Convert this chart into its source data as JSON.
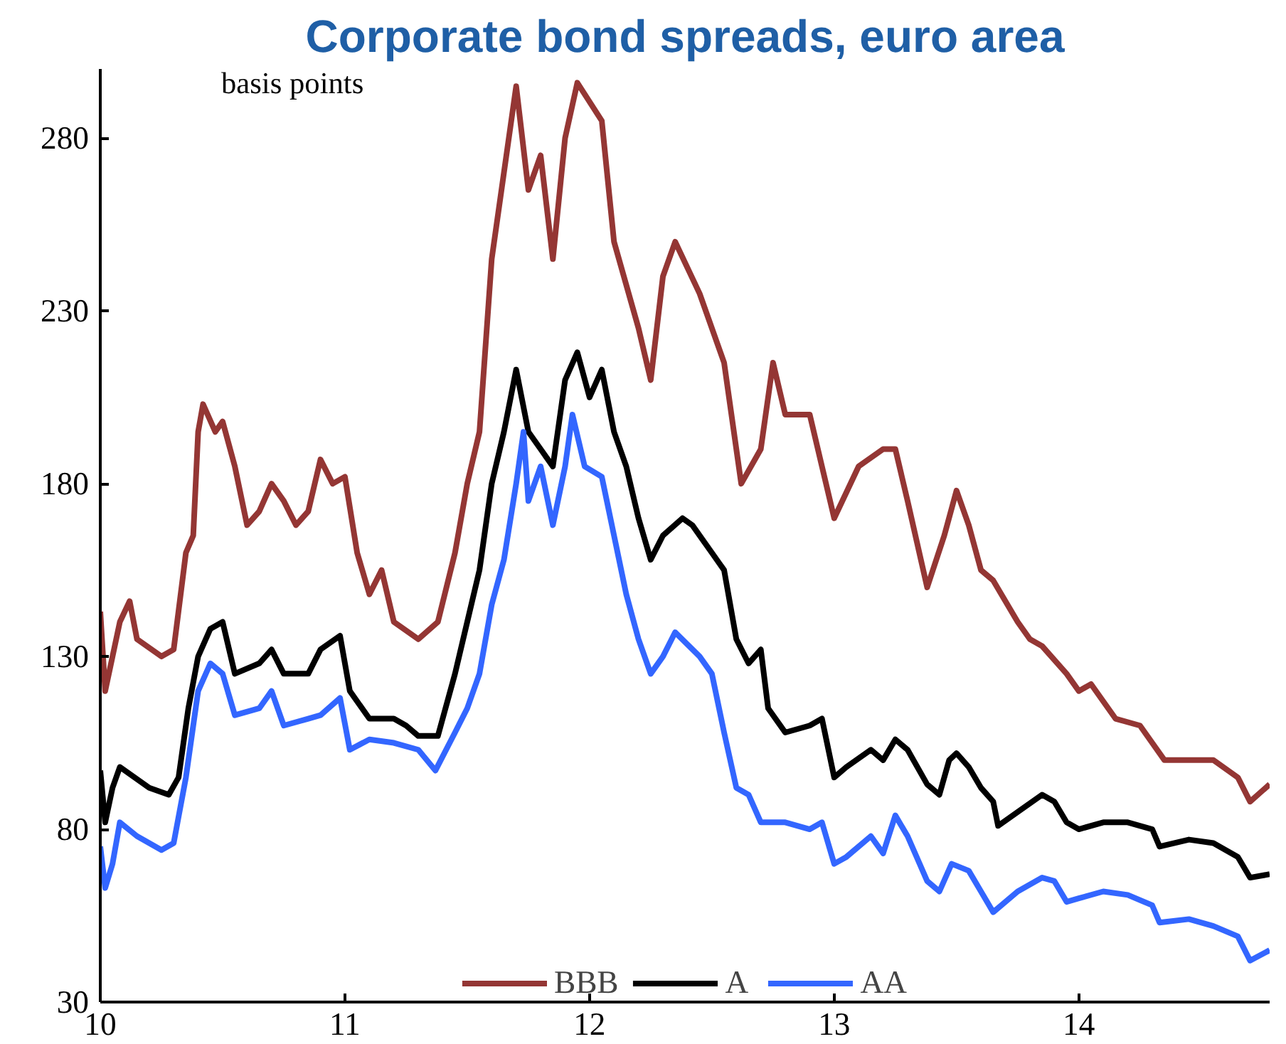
{
  "chart_data": {
    "type": "line",
    "title": "Corporate bond spreads, euro area",
    "ylabel": "basis points",
    "xlim": [
      10,
      14.78
    ],
    "xticks": [
      10,
      11,
      12,
      13,
      14
    ],
    "ylim": [
      30,
      300
    ],
    "yticks": [
      30,
      80,
      130,
      180,
      230,
      280
    ],
    "grid": false,
    "legend": "bottom",
    "marker": "none",
    "line_style": "solid",
    "series": [
      {
        "name": "BBB",
        "color": "#943634",
        "x": [
          10.0,
          10.02,
          10.05,
          10.08,
          10.12,
          10.15,
          10.25,
          10.3,
          10.35,
          10.38,
          10.4,
          10.42,
          10.47,
          10.5,
          10.55,
          10.6,
          10.65,
          10.7,
          10.75,
          10.8,
          10.85,
          10.9,
          10.95,
          11.0,
          11.05,
          11.1,
          11.15,
          11.2,
          11.3,
          11.38,
          11.45,
          11.5,
          11.55,
          11.6,
          11.65,
          11.7,
          11.75,
          11.8,
          11.85,
          11.9,
          11.95,
          12.05,
          12.1,
          12.2,
          12.25,
          12.3,
          12.35,
          12.45,
          12.55,
          12.62,
          12.7,
          12.75,
          12.8,
          12.9,
          12.95,
          13.0,
          13.1,
          13.2,
          13.25,
          13.3,
          13.38,
          13.45,
          13.5,
          13.55,
          13.6,
          13.65,
          13.75,
          13.8,
          13.85,
          13.95,
          14.0,
          14.05,
          14.15,
          14.25,
          14.35,
          14.45,
          14.55,
          14.65,
          14.7,
          14.78
        ],
        "values": [
          143,
          120,
          130,
          140,
          146,
          135,
          130,
          132,
          160,
          165,
          195,
          203,
          195,
          198,
          185,
          168,
          172,
          180,
          175,
          168,
          172,
          187,
          180,
          182,
          160,
          148,
          155,
          140,
          135,
          140,
          160,
          180,
          195,
          245,
          270,
          295,
          265,
          275,
          245,
          280,
          296,
          285,
          250,
          225,
          210,
          240,
          250,
          235,
          215,
          180,
          190,
          215,
          200,
          200,
          185,
          170,
          185,
          190,
          190,
          175,
          150,
          165,
          178,
          168,
          155,
          152,
          140,
          135,
          133,
          125,
          120,
          122,
          112,
          110,
          100,
          100,
          100,
          95,
          88,
          93
        ]
      },
      {
        "name": "A",
        "color": "#000000",
        "x": [
          10.0,
          10.02,
          10.05,
          10.08,
          10.12,
          10.2,
          10.28,
          10.32,
          10.36,
          10.4,
          10.45,
          10.5,
          10.55,
          10.65,
          10.7,
          10.75,
          10.85,
          10.9,
          10.98,
          11.02,
          11.1,
          11.2,
          11.25,
          11.3,
          11.38,
          11.45,
          11.5,
          11.55,
          11.6,
          11.65,
          11.7,
          11.75,
          11.8,
          11.85,
          11.9,
          11.95,
          12.0,
          12.05,
          12.1,
          12.15,
          12.2,
          12.25,
          12.3,
          12.38,
          12.42,
          12.5,
          12.55,
          12.6,
          12.65,
          12.7,
          12.73,
          12.8,
          12.9,
          12.95,
          13.0,
          13.05,
          13.15,
          13.2,
          13.25,
          13.3,
          13.38,
          13.43,
          13.47,
          13.5,
          13.55,
          13.6,
          13.65,
          13.67,
          13.75,
          13.85,
          13.9,
          13.95,
          14.0,
          14.1,
          14.2,
          14.3,
          14.33,
          14.45,
          14.55,
          14.65,
          14.7,
          14.78
        ],
        "values": [
          97,
          82,
          92,
          98,
          96,
          92,
          90,
          95,
          115,
          130,
          138,
          140,
          125,
          128,
          132,
          125,
          125,
          132,
          136,
          120,
          112,
          112,
          110,
          107,
          107,
          125,
          140,
          155,
          180,
          195,
          213,
          195,
          190,
          185,
          210,
          218,
          205,
          213,
          195,
          185,
          170,
          158,
          165,
          170,
          168,
          160,
          155,
          135,
          128,
          132,
          115,
          108,
          110,
          112,
          95,
          98,
          103,
          100,
          106,
          103,
          93,
          90,
          100,
          102,
          98,
          92,
          88,
          81,
          85,
          90,
          88,
          82,
          80,
          82,
          82,
          80,
          75,
          77,
          76,
          72,
          66,
          67
        ]
      },
      {
        "name": "AA",
        "color": "#3366ff",
        "x": [
          10.0,
          10.02,
          10.05,
          10.08,
          10.15,
          10.25,
          10.3,
          10.35,
          10.4,
          10.45,
          10.5,
          10.55,
          10.65,
          10.7,
          10.75,
          10.85,
          10.9,
          10.98,
          11.02,
          11.1,
          11.2,
          11.3,
          11.37,
          11.45,
          11.5,
          11.55,
          11.6,
          11.65,
          11.7,
          11.73,
          11.75,
          11.8,
          11.85,
          11.9,
          11.93,
          11.98,
          12.05,
          12.1,
          12.15,
          12.2,
          12.25,
          12.3,
          12.35,
          12.45,
          12.5,
          12.55,
          12.6,
          12.65,
          12.7,
          12.8,
          12.9,
          12.95,
          13.0,
          13.05,
          13.15,
          13.2,
          13.25,
          13.3,
          13.38,
          13.43,
          13.48,
          13.55,
          13.6,
          13.65,
          13.75,
          13.85,
          13.9,
          13.95,
          14.0,
          14.1,
          14.2,
          14.3,
          14.33,
          14.45,
          14.55,
          14.65,
          14.7,
          14.78
        ],
        "values": [
          75,
          63,
          70,
          82,
          78,
          74,
          76,
          95,
          120,
          128,
          125,
          113,
          115,
          120,
          110,
          112,
          113,
          118,
          103,
          106,
          105,
          103,
          97,
          108,
          115,
          125,
          145,
          158,
          180,
          195,
          175,
          185,
          168,
          185,
          200,
          185,
          182,
          165,
          148,
          135,
          125,
          130,
          137,
          130,
          125,
          108,
          92,
          90,
          82,
          82,
          80,
          82,
          70,
          72,
          78,
          73,
          84,
          78,
          65,
          62,
          70,
          68,
          62,
          56,
          62,
          66,
          65,
          59,
          60,
          62,
          61,
          58,
          53,
          54,
          52,
          49,
          42,
          45
        ]
      }
    ]
  }
}
